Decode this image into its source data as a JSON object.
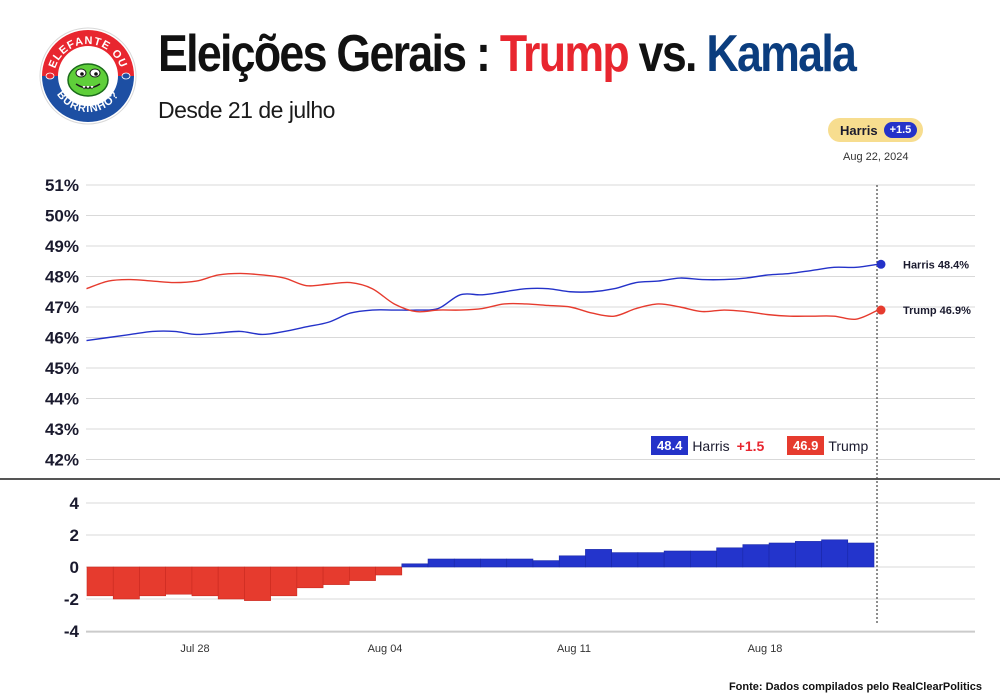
{
  "header": {
    "title_prefix": "Eleições Gerais : ",
    "title_trump": "Trump",
    "title_vs": " vs. ",
    "title_kamala": "Kamala",
    "subtitle": "Desde 21 de julho",
    "logo_text_top": "ELEFANTE OU",
    "logo_text_bottom": "BURRINHO?"
  },
  "badge": {
    "leader": "Harris",
    "lead": "+1.5",
    "date": "Aug 22, 2024"
  },
  "legend": {
    "harris_value": "48.4",
    "harris_name": "Harris",
    "harris_lead": "+1.5",
    "trump_value": "46.9",
    "trump_name": "Trump"
  },
  "end_labels": {
    "harris": "Harris 48.4%",
    "trump": "Trump 46.9%"
  },
  "source": "Fonte: Dados compilados pelo RealClearPolitics",
  "colors": {
    "harris": "#2432c9",
    "trump": "#e63b2e",
    "harris_bar": "#2334cc",
    "trump_bar": "#e63b2e"
  },
  "chart_data": {
    "type": "line",
    "title": "Eleições Gerais : Trump vs. Kamala",
    "subtitle": "Desde 21 de julho",
    "x_start": "Jul 21, 2024",
    "x_end": "Aug 22, 2024",
    "x_tick_labels": [
      "Jul 28",
      "Aug 04",
      "Aug 11",
      "Aug 18"
    ],
    "y_ticks": [
      "42%",
      "43%",
      "44%",
      "45%",
      "46%",
      "47%",
      "48%",
      "49%",
      "50%",
      "51%"
    ],
    "ylim": [
      41.5,
      51.3
    ],
    "series": [
      {
        "name": "Harris",
        "values": [
          45.9,
          46.0,
          46.1,
          46.2,
          46.2,
          46.1,
          46.15,
          46.2,
          46.1,
          46.2,
          46.35,
          46.5,
          46.8,
          46.9,
          46.9,
          46.9,
          46.95,
          47.4,
          47.4,
          47.5,
          47.6,
          47.6,
          47.5,
          47.5,
          47.6,
          47.8,
          47.85,
          47.95,
          47.9,
          47.9,
          47.95,
          48.05,
          48.1,
          48.2,
          48.3,
          48.3,
          48.4
        ]
      },
      {
        "name": "Trump",
        "values": [
          47.6,
          47.85,
          47.9,
          47.85,
          47.8,
          47.85,
          48.05,
          48.1,
          48.05,
          47.95,
          47.7,
          47.75,
          47.8,
          47.6,
          47.1,
          46.85,
          46.9,
          46.9,
          46.95,
          47.1,
          47.1,
          47.05,
          47.0,
          46.8,
          46.7,
          46.95,
          47.1,
          47.0,
          46.85,
          46.9,
          46.85,
          46.75,
          46.7,
          46.7,
          46.7,
          46.6,
          46.9
        ]
      }
    ],
    "spread_chart": {
      "type": "bar",
      "y_ticks": [
        "4",
        "2",
        "0",
        "-2",
        "-4"
      ],
      "ylim": [
        -4.2,
        4.8
      ],
      "values": [
        -1.8,
        -2.0,
        -1.8,
        -1.7,
        -1.8,
        -2.0,
        -2.1,
        -1.8,
        -1.3,
        -1.1,
        -0.85,
        -0.5,
        0.2,
        0.5,
        0.5,
        0.5,
        0.5,
        0.4,
        0.7,
        1.1,
        0.9,
        0.9,
        1.0,
        1.0,
        1.2,
        1.4,
        1.5,
        1.6,
        1.7,
        1.5
      ]
    }
  }
}
